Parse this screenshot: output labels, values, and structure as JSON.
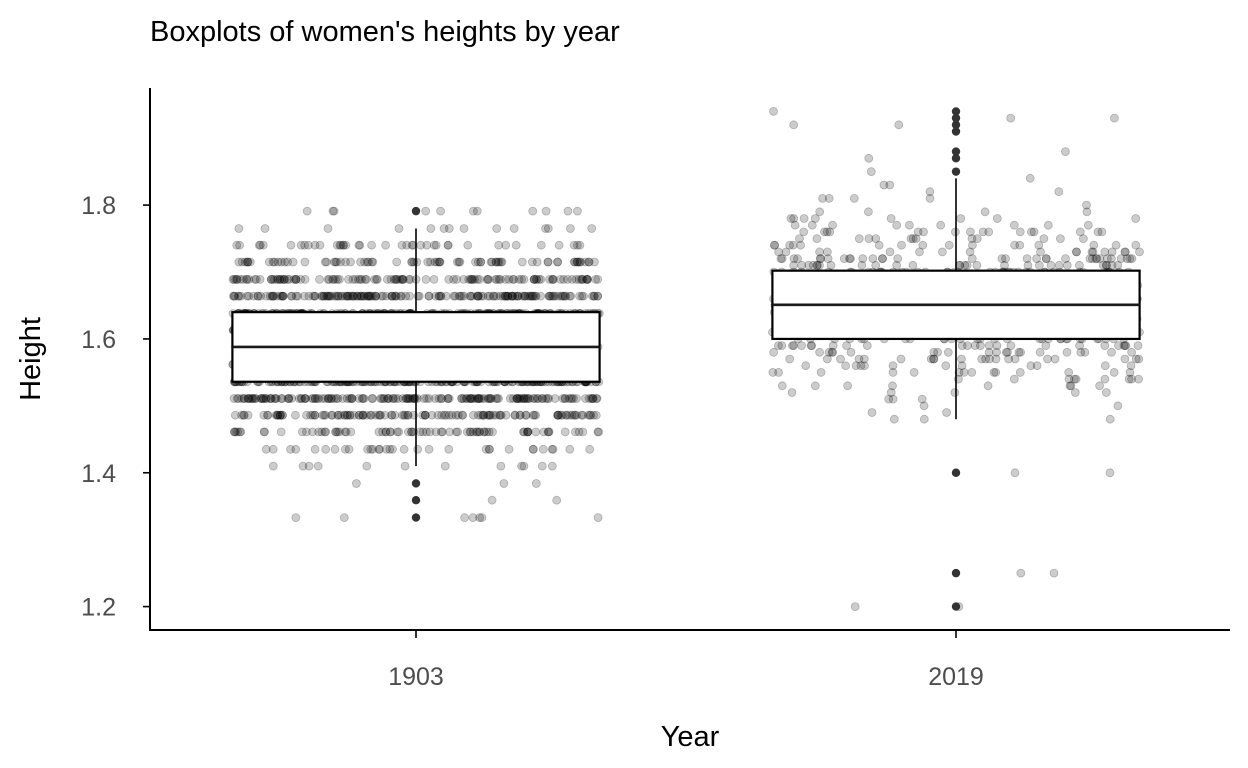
{
  "chart_data": {
    "type": "boxplot",
    "title": "Boxplots of women's heights by year",
    "xlabel": "Year",
    "ylabel": "Height",
    "categories": [
      "1903",
      "2019"
    ],
    "ylim": [
      1.165,
      1.975
    ],
    "y_ticks": [
      1.2,
      1.4,
      1.6,
      1.8
    ],
    "y_tick_labels": [
      "1.2",
      "1.4",
      "1.6",
      "1.8"
    ],
    "grid": false,
    "legend": "none",
    "point_color": "#000000",
    "point_alpha": 0.2,
    "box_fill": "#ffffff",
    "boxes": [
      {
        "category": "1903",
        "whisker_low": 1.41,
        "q1": 1.536,
        "median": 1.588,
        "q3": 1.64,
        "whisker_high": 1.765,
        "outliers": [
          1.333,
          1.359,
          1.384,
          1.791
        ]
      },
      {
        "category": "2019",
        "whisker_low": 1.48,
        "q1": 1.6,
        "median": 1.651,
        "q3": 1.702,
        "whisker_high": 1.84,
        "outliers": [
          1.2,
          1.25,
          1.4,
          1.85,
          1.87,
          1.88,
          1.91,
          1.92,
          1.93,
          1.94
        ]
      }
    ],
    "jitter_groups": [
      {
        "category": "1903",
        "levels": [
          {
            "y": 1.333,
            "count": 7
          },
          {
            "y": 1.359,
            "count": 2
          },
          {
            "y": 1.384,
            "count": 3
          },
          {
            "y": 1.41,
            "count": 12
          },
          {
            "y": 1.435,
            "count": 32
          },
          {
            "y": 1.461,
            "count": 75
          },
          {
            "y": 1.486,
            "count": 120
          },
          {
            "y": 1.511,
            "count": 170
          },
          {
            "y": 1.536,
            "count": 185
          },
          {
            "y": 1.562,
            "count": 200
          },
          {
            "y": 1.588,
            "count": 205
          },
          {
            "y": 1.613,
            "count": 200
          },
          {
            "y": 1.638,
            "count": 180
          },
          {
            "y": 1.664,
            "count": 170
          },
          {
            "y": 1.689,
            "count": 120
          },
          {
            "y": 1.715,
            "count": 75
          },
          {
            "y": 1.74,
            "count": 40
          },
          {
            "y": 1.765,
            "count": 14
          },
          {
            "y": 1.791,
            "count": 11
          }
        ]
      },
      {
        "category": "2019",
        "range": [
          1.48,
          1.84
        ],
        "center": 1.651,
        "spread": 0.065,
        "count": 720,
        "extra_points": [
          1.2,
          1.2,
          1.25,
          1.25,
          1.4,
          1.4,
          1.88,
          1.93,
          1.92,
          1.94,
          1.93,
          1.87,
          1.85,
          1.83,
          1.84,
          1.92
        ]
      }
    ]
  }
}
